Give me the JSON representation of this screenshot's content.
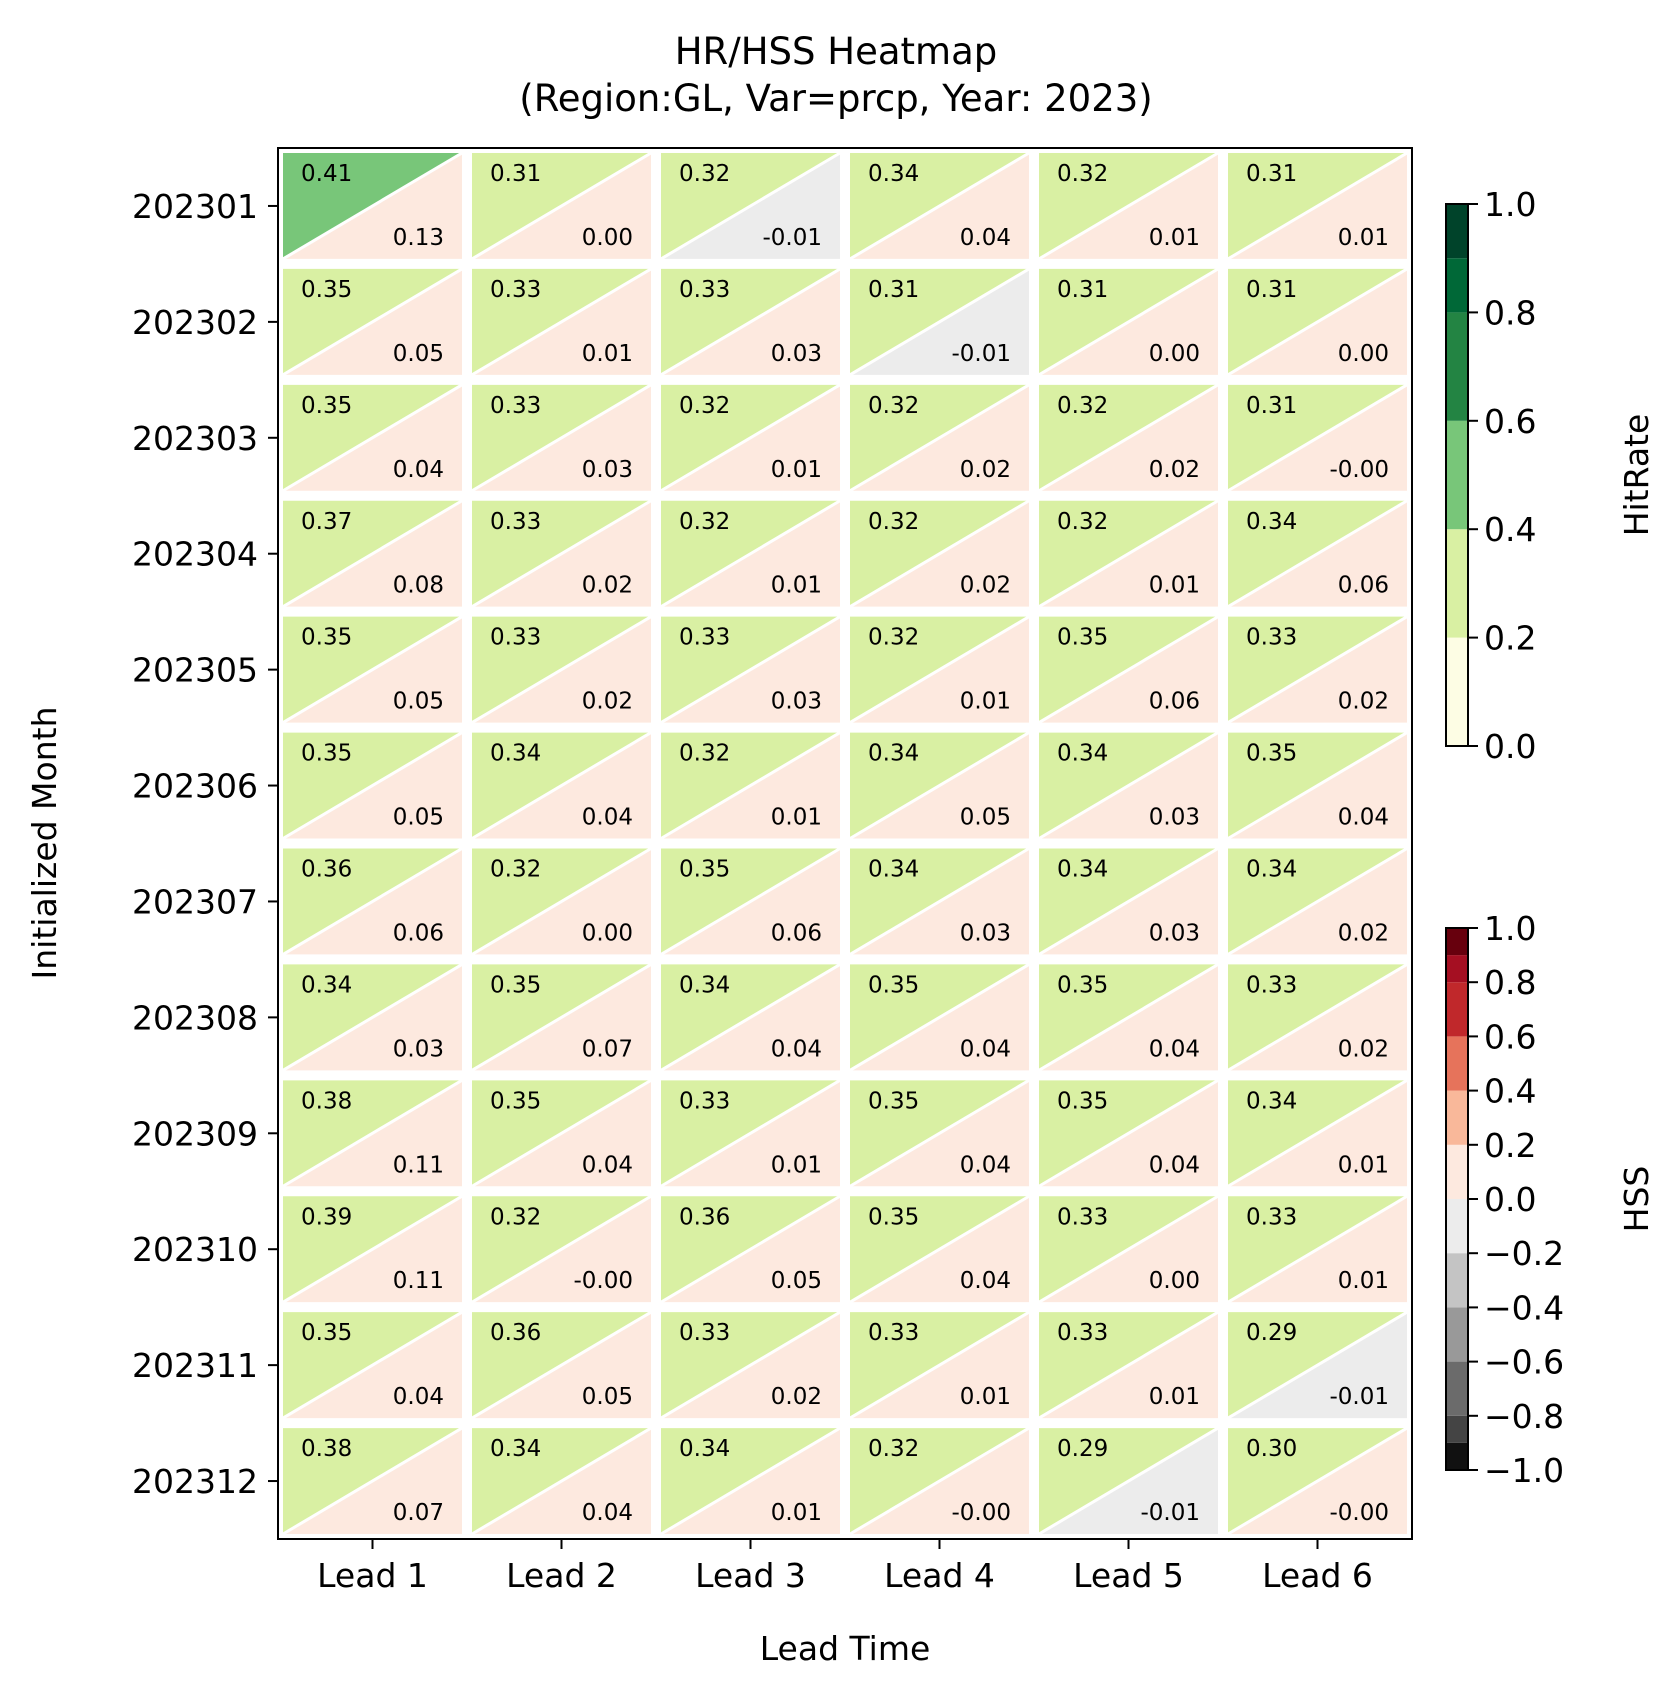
{
  "chart_data": {
    "type": "heatmap",
    "title": "HR/HSS Heatmap",
    "subtitle": "(Region:GL, Var=prcp, Year: 2023)",
    "xlabel": "Lead Time",
    "ylabel": "Initialized Month",
    "x_categories": [
      "Lead 1",
      "Lead 2",
      "Lead 3",
      "Lead 4",
      "Lead 5",
      "Lead 6"
    ],
    "y_categories": [
      "202301",
      "202302",
      "202303",
      "202304",
      "202305",
      "202306",
      "202307",
      "202308",
      "202309",
      "202310",
      "202311",
      "202312"
    ],
    "series": [
      {
        "name": "HitRate",
        "values": [
          [
            0.41,
            0.31,
            0.32,
            0.34,
            0.32,
            0.31
          ],
          [
            0.35,
            0.33,
            0.33,
            0.31,
            0.31,
            0.31
          ],
          [
            0.35,
            0.33,
            0.32,
            0.32,
            0.32,
            0.31
          ],
          [
            0.37,
            0.33,
            0.32,
            0.32,
            0.32,
            0.34
          ],
          [
            0.35,
            0.33,
            0.33,
            0.32,
            0.35,
            0.33
          ],
          [
            0.35,
            0.34,
            0.32,
            0.34,
            0.34,
            0.35
          ],
          [
            0.36,
            0.32,
            0.35,
            0.34,
            0.34,
            0.34
          ],
          [
            0.34,
            0.35,
            0.34,
            0.35,
            0.35,
            0.33
          ],
          [
            0.38,
            0.35,
            0.33,
            0.35,
            0.35,
            0.34
          ],
          [
            0.39,
            0.32,
            0.36,
            0.35,
            0.33,
            0.33
          ],
          [
            0.35,
            0.36,
            0.33,
            0.33,
            0.33,
            0.29
          ],
          [
            0.38,
            0.34,
            0.34,
            0.32,
            0.29,
            0.3
          ]
        ]
      },
      {
        "name": "HSS",
        "values": [
          [
            "0.13",
            "0.00",
            "-0.01",
            "0.04",
            "0.01",
            "0.01"
          ],
          [
            "0.05",
            "0.01",
            "0.03",
            "-0.01",
            "0.00",
            "0.00"
          ],
          [
            "0.04",
            "0.03",
            "0.01",
            "0.02",
            "0.02",
            "-0.00"
          ],
          [
            "0.08",
            "0.02",
            "0.01",
            "0.02",
            "0.01",
            "0.06"
          ],
          [
            "0.05",
            "0.02",
            "0.03",
            "0.01",
            "0.06",
            "0.02"
          ],
          [
            "0.05",
            "0.04",
            "0.01",
            "0.05",
            "0.03",
            "0.04"
          ],
          [
            "0.06",
            "0.00",
            "0.06",
            "0.03",
            "0.03",
            "0.02"
          ],
          [
            "0.03",
            "0.07",
            "0.04",
            "0.04",
            "0.04",
            "0.02"
          ],
          [
            "0.11",
            "0.04",
            "0.01",
            "0.04",
            "0.04",
            "0.01"
          ],
          [
            "0.11",
            "-0.00",
            "0.05",
            "0.04",
            "0.00",
            "0.01"
          ],
          [
            "0.04",
            "0.05",
            "0.02",
            "0.01",
            "0.01",
            "-0.01"
          ],
          [
            "0.07",
            "0.04",
            "0.01",
            "-0.00",
            "-0.01",
            "-0.00"
          ]
        ]
      }
    ],
    "colorbars": [
      {
        "label": "HitRate",
        "range": [
          0.0,
          1.0
        ],
        "tick_labels": [
          "0.0",
          "0.2",
          "0.4",
          "0.6",
          "0.8",
          "1.0"
        ],
        "bins": [
          0,
          0.2,
          0.4,
          0.6,
          0.8,
          0.9,
          1.0
        ],
        "colors": [
          "#fdfde4",
          "#d9f0a3",
          "#78c679",
          "#238443",
          "#006837",
          "#00432a"
        ]
      },
      {
        "label": "HSS",
        "range": [
          -1.0,
          1.0
        ],
        "tick_labels": [
          "−1.0",
          "−0.8",
          "−0.6",
          "−0.4",
          "−0.2",
          "0.0",
          "0.2",
          "0.4",
          "0.6",
          "0.8",
          "1.0"
        ],
        "bins": [
          -1.0,
          -0.9,
          -0.8,
          -0.6,
          -0.4,
          -0.2,
          0.0,
          0.2,
          0.4,
          0.6,
          0.8,
          0.9,
          1.0
        ],
        "colors": [
          "#111111",
          "#444444",
          "#6b6b6b",
          "#999999",
          "#c4c4c4",
          "#ececec",
          "#fde9df",
          "#f9b89a",
          "#e6735b",
          "#c0282b",
          "#a50f22",
          "#67000d"
        ]
      }
    ],
    "grid": false
  }
}
